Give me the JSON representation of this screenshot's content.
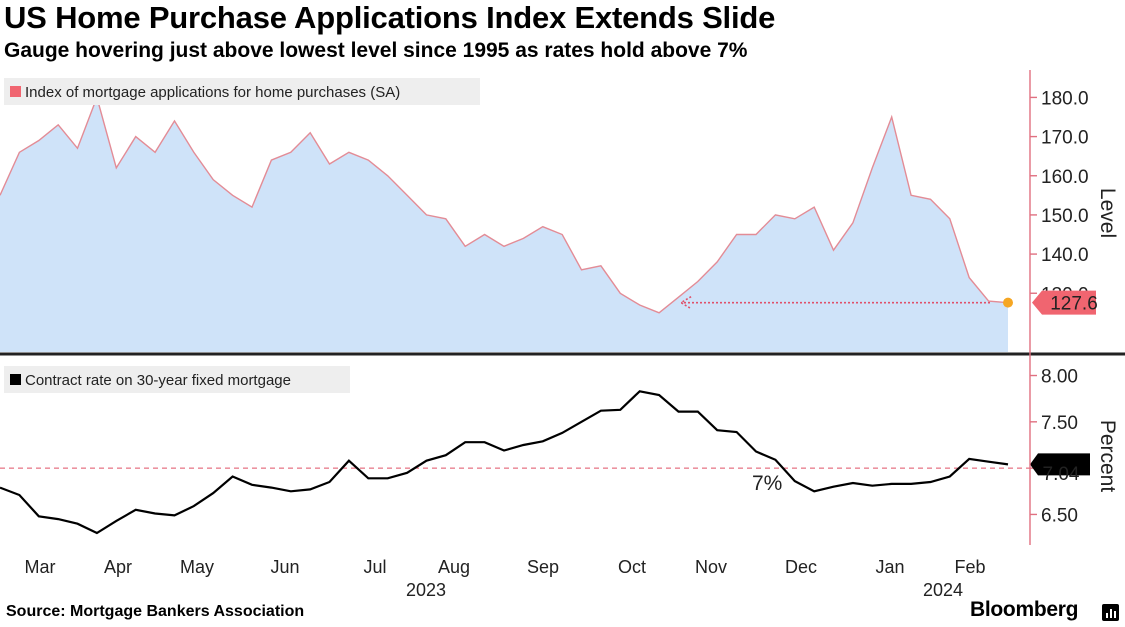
{
  "header": {
    "title": "US Home Purchase Applications Index Extends Slide",
    "subtitle": "Gauge hovering just above lowest level since 1995 as rates hold above 7%"
  },
  "footer": {
    "source": "Source: Mortgage Bankers Association",
    "brand": "Bloomberg"
  },
  "colors": {
    "area_fill": "#cfe3f9",
    "index_line": "#e38c96",
    "rate_line": "#000000",
    "arrow": "#e0506a",
    "dot": "#f5a623",
    "index_label_bg": "#f06570",
    "threshold": "#e05066",
    "axis_line": "#e07080"
  },
  "x_axis": {
    "months": [
      "Mar",
      "Apr",
      "May",
      "Jun",
      "Jul",
      "Aug",
      "Sep",
      "Oct",
      "Nov",
      "Dec",
      "Jan",
      "Feb"
    ],
    "years": [
      "2023",
      "2024"
    ]
  },
  "chart_data": [
    {
      "type": "area",
      "legend": "Index of mortgage applications for home purchases (SA)",
      "ylabel": "Level",
      "ylim": [
        115,
        187
      ],
      "yticks": [
        {
          "value": 130,
          "label": "130.0"
        },
        {
          "value": 140,
          "label": "140.0"
        },
        {
          "value": 150,
          "label": "150.0"
        },
        {
          "value": 160,
          "label": "160.0"
        },
        {
          "value": 170,
          "label": "170.0"
        },
        {
          "value": 180,
          "label": "180.0"
        }
      ],
      "latest_label": "127.6",
      "x": [
        "2023-02-24",
        "2023-03-03",
        "2023-03-10",
        "2023-03-17",
        "2023-03-24",
        "2023-03-31",
        "2023-04-07",
        "2023-04-14",
        "2023-04-21",
        "2023-04-28",
        "2023-05-05",
        "2023-05-12",
        "2023-05-19",
        "2023-05-26",
        "2023-06-02",
        "2023-06-09",
        "2023-06-16",
        "2023-06-23",
        "2023-06-30",
        "2023-07-07",
        "2023-07-14",
        "2023-07-21",
        "2023-07-28",
        "2023-08-04",
        "2023-08-11",
        "2023-08-18",
        "2023-08-25",
        "2023-09-01",
        "2023-09-08",
        "2023-09-15",
        "2023-09-22",
        "2023-09-29",
        "2023-10-06",
        "2023-10-13",
        "2023-10-20",
        "2023-10-27",
        "2023-11-03",
        "2023-11-10",
        "2023-11-17",
        "2023-11-24",
        "2023-12-01",
        "2023-12-08",
        "2023-12-15",
        "2023-12-22",
        "2023-12-29",
        "2024-01-05",
        "2024-01-12",
        "2024-01-19",
        "2024-01-26",
        "2024-02-02",
        "2024-02-09",
        "2024-02-16",
        "2024-02-23"
      ],
      "values": [
        155,
        166,
        169,
        173,
        167,
        180,
        162,
        170,
        166,
        174,
        166,
        159,
        155,
        152,
        164,
        166,
        171,
        163,
        166,
        164,
        160,
        155,
        150,
        149,
        142,
        145,
        142,
        144,
        147,
        145,
        136,
        137,
        130,
        127,
        125,
        129,
        133,
        138,
        145,
        145,
        150,
        149,
        152,
        141,
        148,
        162,
        175,
        155,
        154,
        149,
        134,
        128,
        127.6
      ]
    },
    {
      "type": "line",
      "legend": "Contract rate on 30-year fixed mortgage",
      "ylabel": "Percent",
      "ylim": [
        6.17,
        8.2
      ],
      "yticks": [
        {
          "value": 6.5,
          "label": "6.50"
        },
        {
          "value": 7.0,
          "label": "7.00"
        },
        {
          "value": 7.5,
          "label": "7.50"
        },
        {
          "value": 8.0,
          "label": "8.00"
        }
      ],
      "threshold": {
        "value": 7.0,
        "label": "7%"
      },
      "latest_label": "7.04",
      "x": [
        "2023-02-24",
        "2023-03-03",
        "2023-03-10",
        "2023-03-17",
        "2023-03-24",
        "2023-03-31",
        "2023-04-07",
        "2023-04-14",
        "2023-04-21",
        "2023-04-28",
        "2023-05-05",
        "2023-05-12",
        "2023-05-19",
        "2023-05-26",
        "2023-06-02",
        "2023-06-09",
        "2023-06-16",
        "2023-06-23",
        "2023-06-30",
        "2023-07-07",
        "2023-07-14",
        "2023-07-21",
        "2023-07-28",
        "2023-08-04",
        "2023-08-11",
        "2023-08-18",
        "2023-08-25",
        "2023-09-01",
        "2023-09-08",
        "2023-09-15",
        "2023-09-22",
        "2023-09-29",
        "2023-10-06",
        "2023-10-13",
        "2023-10-20",
        "2023-10-27",
        "2023-11-03",
        "2023-11-10",
        "2023-11-17",
        "2023-11-24",
        "2023-12-01",
        "2023-12-08",
        "2023-12-15",
        "2023-12-22",
        "2023-12-29",
        "2024-01-05",
        "2024-01-12",
        "2024-01-19",
        "2024-01-26",
        "2024-02-02",
        "2024-02-09",
        "2024-02-16",
        "2024-02-23"
      ],
      "values": [
        6.79,
        6.71,
        6.48,
        6.45,
        6.4,
        6.3,
        6.43,
        6.55,
        6.51,
        6.49,
        6.59,
        6.73,
        6.91,
        6.82,
        6.79,
        6.75,
        6.77,
        6.85,
        7.08,
        6.89,
        6.89,
        6.95,
        7.08,
        7.14,
        7.28,
        7.28,
        7.19,
        7.25,
        7.29,
        7.38,
        7.5,
        7.62,
        7.63,
        7.83,
        7.79,
        7.61,
        7.61,
        7.41,
        7.39,
        7.18,
        7.09,
        6.86,
        6.75,
        6.8,
        6.84,
        6.81,
        6.83,
        6.83,
        6.85,
        6.91,
        7.1,
        7.07,
        7.04
      ]
    }
  ]
}
